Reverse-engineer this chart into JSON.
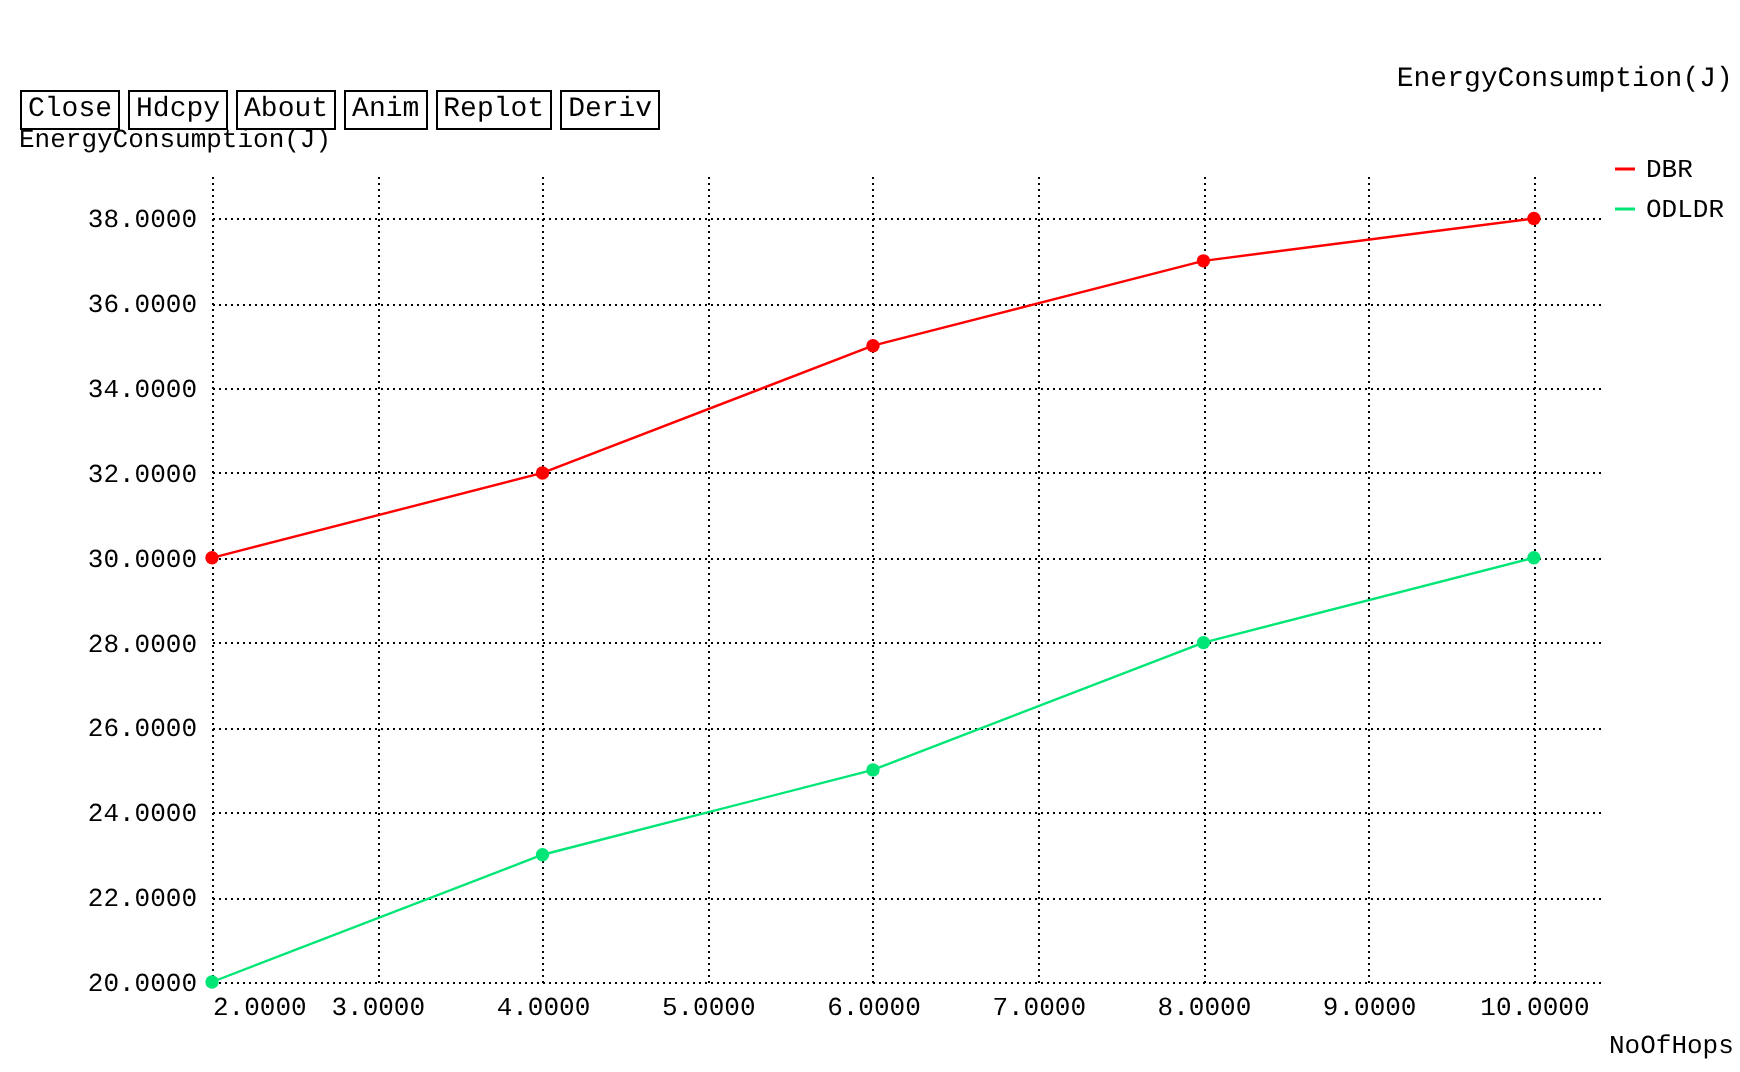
{
  "chart_data": {
    "type": "line",
    "title": "EnergyConsumption(J)",
    "xlabel": "NoOfHops",
    "ylabel": "EnergyConsumption(J)",
    "annotations": [
      "Close",
      "Hdcpy",
      "About",
      "Anim",
      "Replot",
      "Deriv"
    ],
    "x": [
      2,
      4,
      6,
      8,
      10
    ],
    "series": [
      {
        "name": "DBR",
        "color": "#ff0000",
        "values": [
          30,
          32,
          35,
          37,
          38
        ]
      },
      {
        "name": "ODLDR",
        "color": "#00e676",
        "values": [
          20,
          23,
          25,
          28,
          30
        ]
      }
    ],
    "xlim": [
      2,
      10.4
    ],
    "xticks": [
      {
        "value": 2,
        "label": "2.0000"
      },
      {
        "value": 3,
        "label": "3.0000"
      },
      {
        "value": 4,
        "label": "4.0000"
      },
      {
        "value": 5,
        "label": "5.0000"
      },
      {
        "value": 6,
        "label": "6.0000"
      },
      {
        "value": 7,
        "label": "7.0000"
      },
      {
        "value": 8,
        "label": "8.0000"
      },
      {
        "value": 9,
        "label": "9.0000"
      },
      {
        "value": 10,
        "label": "10.0000"
      }
    ],
    "ylim": [
      20,
      39
    ],
    "yticks": [
      {
        "value": 20,
        "label": "20.0000"
      },
      {
        "value": 22,
        "label": "22.0000"
      },
      {
        "value": 24,
        "label": "24.0000"
      },
      {
        "value": 26,
        "label": "26.0000"
      },
      {
        "value": 28,
        "label": "28.0000"
      },
      {
        "value": 30,
        "label": "30.0000"
      },
      {
        "value": 32,
        "label": "32.0000"
      },
      {
        "value": 34,
        "label": "34.0000"
      },
      {
        "value": 36,
        "label": "36.0000"
      },
      {
        "value": 38,
        "label": "38.0000"
      }
    ],
    "grid": true,
    "legend": "top right",
    "marker": "circle",
    "line_style": "solid"
  }
}
